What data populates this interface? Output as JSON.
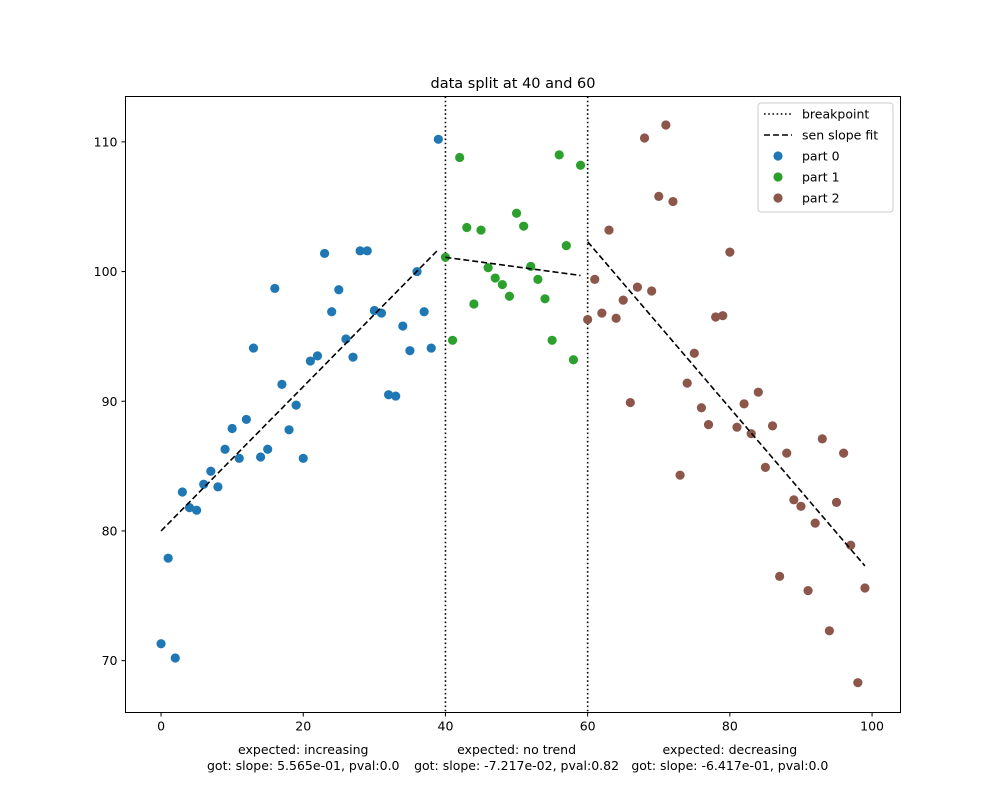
{
  "chart_data": {
    "type": "scatter",
    "title": "data split at 40 and 60",
    "xlabel": "",
    "ylabel": "",
    "xlim": [
      -5,
      104
    ],
    "ylim": [
      66,
      113.5
    ],
    "xticks": [
      0,
      20,
      40,
      60,
      80,
      100
    ],
    "yticks": [
      70,
      80,
      90,
      100,
      110
    ],
    "grid": false,
    "legend_position": "top-right",
    "breakpoints": [
      40,
      60
    ],
    "legend": [
      {
        "label": "breakpoint",
        "kind": "dotted-line",
        "color": "#000000"
      },
      {
        "label": "sen slope fit",
        "kind": "dashed-line",
        "color": "#000000"
      },
      {
        "label": "part 0",
        "kind": "marker",
        "color": "#1f77b4"
      },
      {
        "label": "part 1",
        "kind": "marker",
        "color": "#2ca02c"
      },
      {
        "label": "part 2",
        "kind": "marker",
        "color": "#8c564b"
      }
    ],
    "series": [
      {
        "name": "part 0",
        "color": "#1f77b4",
        "x": [
          0,
          1,
          2,
          3,
          4,
          5,
          6,
          7,
          8,
          9,
          10,
          11,
          12,
          13,
          14,
          15,
          16,
          17,
          18,
          19,
          20,
          21,
          22,
          23,
          24,
          25,
          26,
          27,
          28,
          29,
          30,
          31,
          32,
          33,
          34,
          35,
          36,
          37,
          38,
          39
        ],
        "y": [
          71.3,
          77.9,
          70.2,
          83.0,
          81.8,
          81.6,
          83.6,
          84.6,
          83.4,
          86.3,
          87.9,
          85.6,
          88.6,
          94.1,
          85.7,
          86.3,
          98.7,
          91.3,
          87.8,
          89.7,
          85.6,
          93.1,
          93.5,
          101.4,
          96.9,
          98.6,
          94.8,
          93.4,
          101.6,
          101.6,
          97.0,
          96.8,
          90.5,
          90.4,
          95.8,
          93.9,
          100.0,
          96.9,
          94.1,
          110.2
        ]
      },
      {
        "name": "part 1",
        "color": "#2ca02c",
        "x": [
          40,
          41,
          42,
          43,
          44,
          45,
          46,
          47,
          48,
          49,
          50,
          51,
          52,
          53,
          54,
          55,
          56,
          57,
          58,
          59
        ],
        "y": [
          101.1,
          94.7,
          108.8,
          103.4,
          97.5,
          103.2,
          100.3,
          99.5,
          99.0,
          98.1,
          104.5,
          103.5,
          100.4,
          99.4,
          97.9,
          94.7,
          109.0,
          102.0,
          93.2,
          108.2
        ]
      },
      {
        "name": "part 2",
        "color": "#8c564b",
        "x": [
          60,
          61,
          62,
          63,
          64,
          65,
          66,
          67,
          68,
          69,
          70,
          71,
          72,
          73,
          74,
          75,
          76,
          77,
          78,
          79,
          80,
          81,
          82,
          83,
          84,
          85,
          86,
          87,
          88,
          89,
          90,
          91,
          92,
          93,
          94,
          95,
          96,
          97,
          98,
          99
        ],
        "y": [
          96.3,
          99.4,
          96.8,
          103.2,
          96.4,
          97.8,
          89.9,
          98.8,
          110.3,
          98.5,
          105.8,
          111.3,
          105.4,
          84.3,
          91.4,
          93.7,
          89.5,
          88.2,
          96.5,
          96.6,
          101.5,
          88.0,
          89.8,
          87.5,
          90.7,
          84.9,
          88.1,
          76.5,
          86.0,
          82.4,
          81.9,
          75.4,
          80.6,
          87.1,
          72.3,
          82.2,
          86.0,
          78.9,
          68.3,
          75.6
        ]
      }
    ],
    "fit_lines": [
      {
        "x": [
          0,
          39
        ],
        "y": [
          80.0,
          101.7
        ]
      },
      {
        "x": [
          40,
          59
        ],
        "y": [
          101.1,
          99.7
        ]
      },
      {
        "x": [
          60,
          99
        ],
        "y": [
          102.3,
          77.3
        ]
      }
    ],
    "annotations": [
      {
        "x": 20,
        "line1": "expected: increasing",
        "line2": "got: slope: 5.565e-01, pval:0.0"
      },
      {
        "x": 50,
        "line1": "expected: no trend",
        "line2": "got: slope: -7.217e-02, pval:0.82"
      },
      {
        "x": 80,
        "line1": "expected: decreasing",
        "line2": "got: slope: -6.417e-01, pval:0.0"
      }
    ]
  }
}
